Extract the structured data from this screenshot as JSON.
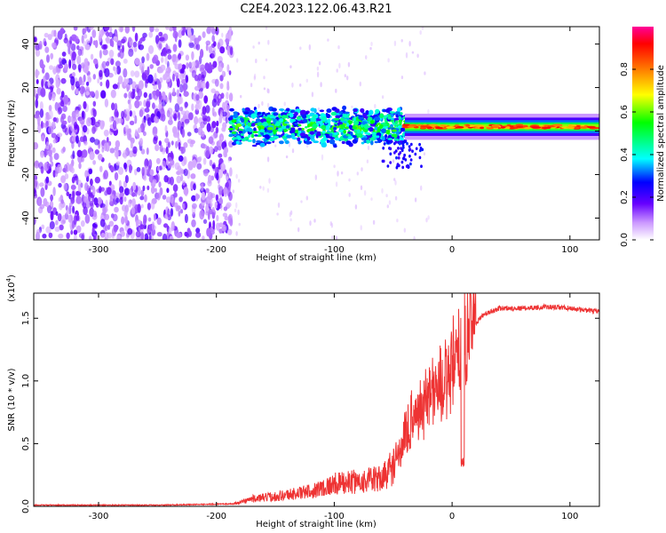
{
  "title": "C2E4.2023.122.06.43.R21",
  "chart_data": [
    {
      "type": "heatmap",
      "xlabel": "Height of straight line (km)",
      "ylabel": "Frequency (Hz)",
      "xlim": [
        -355,
        125
      ],
      "ylim": [
        -50,
        48
      ],
      "x_ticks": [
        -300,
        -200,
        -100,
        0,
        100
      ],
      "y_ticks": [
        -40,
        -20,
        0,
        20,
        40
      ],
      "colorbar": {
        "label": "Normalized spectral amplitude",
        "range": [
          0.0,
          1.0
        ],
        "ticks": [
          0.0,
          0.2,
          0.4,
          0.6,
          0.8
        ],
        "colors": [
          "#ffffff",
          "#cc99ff",
          "#6600ff",
          "#0000ff",
          "#00ffff",
          "#00ff00",
          "#ffff00",
          "#ff6600",
          "#ff0000",
          "#ff0099"
        ]
      },
      "regions": [
        {
          "x_start": -355,
          "x_end": -185,
          "description_level": 0.3
        },
        {
          "x_start": -185,
          "x_end": -40,
          "center_freq": 2,
          "level": 0.45
        },
        {
          "x_start": -40,
          "x_end": 125,
          "center_freq": 2,
          "level": 0.85
        }
      ]
    },
    {
      "type": "line",
      "xlabel": "Height of straight line (km)",
      "ylabel": "SNR (10 * v/v)",
      "multiplier": "(x10",
      "multiplier_exp": "4",
      "multiplier_close": ")",
      "xlim": [
        -355,
        125
      ],
      "ylim": [
        0,
        1.7
      ],
      "x_ticks": [
        -300,
        -200,
        -100,
        0,
        100
      ],
      "y_ticks": [
        0.0,
        0.5,
        1.0,
        1.5
      ],
      "y_tick_labels": [
        "0.0",
        "0.5",
        "1.0",
        "1.5"
      ],
      "color": "#ee3333",
      "anchor_points": [
        [
          -355,
          0.01
        ],
        [
          -250,
          0.01
        ],
        [
          -185,
          0.02
        ],
        [
          -170,
          0.06
        ],
        [
          -150,
          0.08
        ],
        [
          -120,
          0.12
        ],
        [
          -100,
          0.18
        ],
        [
          -80,
          0.2
        ],
        [
          -60,
          0.22
        ],
        [
          -45,
          0.38
        ],
        [
          -35,
          0.6
        ],
        [
          -25,
          0.75
        ],
        [
          -15,
          0.85
        ],
        [
          -5,
          0.9
        ],
        [
          5,
          1.05
        ],
        [
          10,
          1.2
        ],
        [
          15,
          1.38
        ],
        [
          25,
          1.52
        ],
        [
          40,
          1.58
        ],
        [
          60,
          1.58
        ],
        [
          80,
          1.59
        ],
        [
          100,
          1.58
        ],
        [
          125,
          1.55
        ]
      ],
      "dip": {
        "x": 9,
        "y": 0.3
      }
    }
  ]
}
